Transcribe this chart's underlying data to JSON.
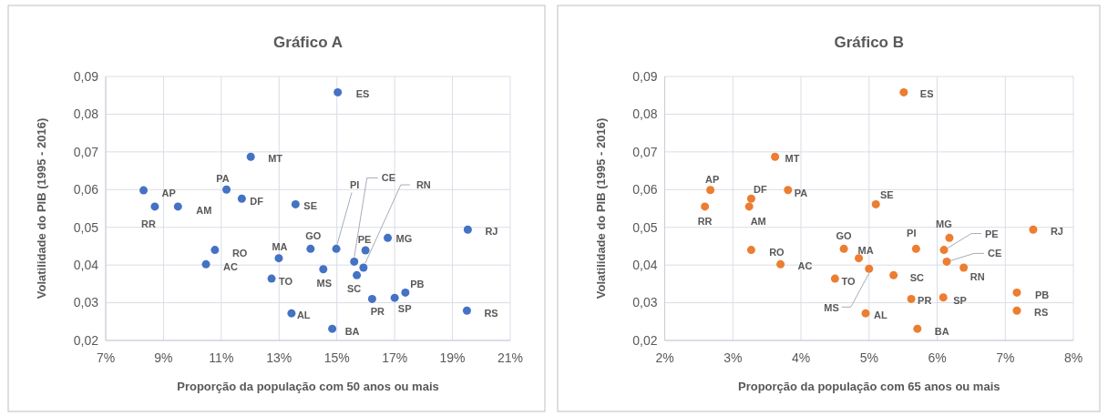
{
  "chart_data": [
    {
      "type": "scatter",
      "title": "Gráfico A",
      "xlabel": "Proporção da população com 50 anos ou mais",
      "ylabel": "Volatilidade do PIB (1995 - 2016)",
      "xlim": [
        7,
        21
      ],
      "xticks": [
        {
          "value": 7,
          "label": "7%"
        },
        {
          "value": 9,
          "label": "9%"
        },
        {
          "value": 11,
          "label": "11%"
        },
        {
          "value": 13,
          "label": "13%"
        },
        {
          "value": 15,
          "label": "15%"
        },
        {
          "value": 17,
          "label": "17%"
        },
        {
          "value": 19,
          "label": "19%"
        },
        {
          "value": 21,
          "label": "21%"
        }
      ],
      "ylim": [
        0.02,
        0.09
      ],
      "yticks": [
        {
          "value": 0.02,
          "label": "0,02"
        },
        {
          "value": 0.03,
          "label": "0,03"
        },
        {
          "value": 0.04,
          "label": "0,04"
        },
        {
          "value": 0.05,
          "label": "0,05"
        },
        {
          "value": 0.06,
          "label": "0,06"
        },
        {
          "value": 0.07,
          "label": "0,07"
        },
        {
          "value": 0.08,
          "label": "0,08"
        },
        {
          "value": 0.09,
          "label": "0,09"
        }
      ],
      "grid": true,
      "marker": "circle",
      "series": [
        {
          "color": "#4472c4",
          "x": [
            15.03,
            12.02,
            8.31,
            11.18,
            11.71,
            8.7,
            9.5,
            13.57,
            10.78,
            10.47,
            12.99,
            14.09,
            14.98,
            15.6,
            15.92,
            15.99,
            16.76,
            19.53,
            12.74,
            14.53,
            15.69,
            16.22,
            17.0,
            17.37,
            13.43,
            19.5,
            14.84
          ],
          "values": [
            0.0858,
            0.0687,
            0.0598,
            0.06,
            0.0576,
            0.0555,
            0.0555,
            0.0561,
            0.044,
            0.0402,
            0.0418,
            0.0443,
            0.0443,
            0.0409,
            0.0393,
            0.0439,
            0.0472,
            0.0494,
            0.0364,
            0.0389,
            0.0373,
            0.031,
            0.0313,
            0.0327,
            0.0272,
            0.0279,
            0.0231
          ]
        }
      ],
      "annotations": [
        {
          "text": "ES",
          "x": 15.03,
          "y": 0.0858
        },
        {
          "text": "MT",
          "x": 12.02,
          "y": 0.0687
        },
        {
          "text": "AP",
          "x": 8.31,
          "y": 0.0598
        },
        {
          "text": "PA",
          "x": 11.18,
          "y": 0.06
        },
        {
          "text": "DF",
          "x": 11.71,
          "y": 0.0576
        },
        {
          "text": "RR",
          "x": 8.7,
          "y": 0.0555
        },
        {
          "text": "AM",
          "x": 9.5,
          "y": 0.0555
        },
        {
          "text": "SE",
          "x": 13.57,
          "y": 0.0561
        },
        {
          "text": "RO",
          "x": 10.78,
          "y": 0.044
        },
        {
          "text": "AC",
          "x": 10.47,
          "y": 0.0402
        },
        {
          "text": "MA",
          "x": 12.99,
          "y": 0.0418
        },
        {
          "text": "GO",
          "x": 14.09,
          "y": 0.0443
        },
        {
          "text": "PI",
          "x": 14.98,
          "y": 0.0443
        },
        {
          "text": "CE",
          "x": 15.6,
          "y": 0.0409
        },
        {
          "text": "RN",
          "x": 15.92,
          "y": 0.0393
        },
        {
          "text": "PE",
          "x": 15.99,
          "y": 0.0439
        },
        {
          "text": "MG",
          "x": 16.76,
          "y": 0.0472
        },
        {
          "text": "RJ",
          "x": 19.53,
          "y": 0.0494
        },
        {
          "text": "TO",
          "x": 12.74,
          "y": 0.0364
        },
        {
          "text": "MS",
          "x": 14.53,
          "y": 0.0389
        },
        {
          "text": "SC",
          "x": 15.69,
          "y": 0.0373
        },
        {
          "text": "PR",
          "x": 16.22,
          "y": 0.031
        },
        {
          "text": "SP",
          "x": 17.0,
          "y": 0.0313
        },
        {
          "text": "PB",
          "x": 17.37,
          "y": 0.0327
        },
        {
          "text": "AL",
          "x": 13.43,
          "y": 0.0272
        },
        {
          "text": "RS",
          "x": 19.5,
          "y": 0.0279
        },
        {
          "text": "BA",
          "x": 14.84,
          "y": 0.0231
        }
      ]
    },
    {
      "type": "scatter",
      "title": "Gráfico B",
      "xlabel": "Proporção da população com 65 anos ou mais",
      "ylabel": "Volatilidade do PIB (1995 - 2016)",
      "xlim": [
        2,
        8
      ],
      "xticks": [
        {
          "value": 2,
          "label": "2%"
        },
        {
          "value": 3,
          "label": "3%"
        },
        {
          "value": 4,
          "label": "4%"
        },
        {
          "value": 5,
          "label": "5%"
        },
        {
          "value": 6,
          "label": "6%"
        },
        {
          "value": 7,
          "label": "7%"
        },
        {
          "value": 8,
          "label": "8%"
        }
      ],
      "ylim": [
        0.02,
        0.09
      ],
      "yticks": [
        {
          "value": 0.02,
          "label": "0,02"
        },
        {
          "value": 0.03,
          "label": "0,03"
        },
        {
          "value": 0.04,
          "label": "0,04"
        },
        {
          "value": 0.05,
          "label": "0,05"
        },
        {
          "value": 0.06,
          "label": "0,06"
        },
        {
          "value": 0.07,
          "label": "0,07"
        },
        {
          "value": 0.08,
          "label": "0,08"
        },
        {
          "value": 0.09,
          "label": "0,09"
        }
      ],
      "grid": true,
      "marker": "circle",
      "series": [
        {
          "color": "#ed7d31",
          "x": [
            5.51,
            3.62,
            2.67,
            3.81,
            3.27,
            2.59,
            3.24,
            5.1,
            3.27,
            3.7,
            4.85,
            4.63,
            5.69,
            6.14,
            6.39,
            6.1,
            6.18,
            7.41,
            4.5,
            5.0,
            5.36,
            5.62,
            6.09,
            7.17,
            4.95,
            7.17,
            5.71
          ],
          "values": [
            0.0858,
            0.0687,
            0.0599,
            0.0599,
            0.0576,
            0.0555,
            0.0555,
            0.0561,
            0.044,
            0.0402,
            0.0418,
            0.0443,
            0.0443,
            0.0409,
            0.0393,
            0.044,
            0.0472,
            0.0494,
            0.0364,
            0.039,
            0.0373,
            0.031,
            0.0314,
            0.0327,
            0.0272,
            0.0279,
            0.0231
          ]
        }
      ],
      "annotations": [
        {
          "text": "ES",
          "x": 5.51,
          "y": 0.0858
        },
        {
          "text": "MT",
          "x": 3.62,
          "y": 0.0687
        },
        {
          "text": "AP",
          "x": 2.67,
          "y": 0.0599
        },
        {
          "text": "PA",
          "x": 3.81,
          "y": 0.0599
        },
        {
          "text": "DF",
          "x": 3.27,
          "y": 0.0576
        },
        {
          "text": "RR",
          "x": 2.59,
          "y": 0.0555
        },
        {
          "text": "AM",
          "x": 3.24,
          "y": 0.0555
        },
        {
          "text": "SE",
          "x": 5.1,
          "y": 0.0561
        },
        {
          "text": "RO",
          "x": 3.27,
          "y": 0.044
        },
        {
          "text": "AC",
          "x": 3.7,
          "y": 0.0402
        },
        {
          "text": "MA",
          "x": 4.85,
          "y": 0.0418
        },
        {
          "text": "GO",
          "x": 4.63,
          "y": 0.0443
        },
        {
          "text": "PI",
          "x": 5.69,
          "y": 0.0443
        },
        {
          "text": "CE",
          "x": 6.14,
          "y": 0.0409
        },
        {
          "text": "RN",
          "x": 6.39,
          "y": 0.0393
        },
        {
          "text": "PE",
          "x": 6.1,
          "y": 0.044
        },
        {
          "text": "MG",
          "x": 6.18,
          "y": 0.0472
        },
        {
          "text": "RJ",
          "x": 7.41,
          "y": 0.0494
        },
        {
          "text": "TO",
          "x": 4.5,
          "y": 0.0364
        },
        {
          "text": "MS",
          "x": 5.0,
          "y": 0.039
        },
        {
          "text": "SC",
          "x": 5.36,
          "y": 0.0373
        },
        {
          "text": "PR",
          "x": 5.62,
          "y": 0.031
        },
        {
          "text": "SP",
          "x": 6.09,
          "y": 0.0314
        },
        {
          "text": "PB",
          "x": 7.17,
          "y": 0.0327
        },
        {
          "text": "AL",
          "x": 4.95,
          "y": 0.0272
        },
        {
          "text": "RS",
          "x": 7.17,
          "y": 0.0279
        },
        {
          "text": "BA",
          "x": 5.71,
          "y": 0.0231
        }
      ]
    }
  ]
}
